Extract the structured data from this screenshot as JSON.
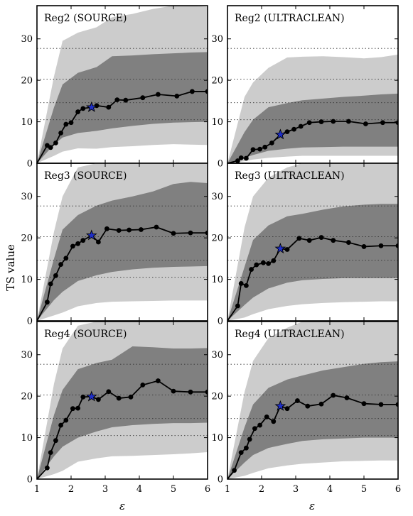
{
  "figure": {
    "ylabel": "TS value",
    "xlabel": "ε",
    "colors": {
      "outer_band": "#cccccc",
      "inner_band": "#808080",
      "line": "#000000",
      "marker_fill": "#000000",
      "star_fill": "#1f2fc8",
      "star_stroke": "#000000"
    }
  },
  "chart_data": [
    {
      "type": "line",
      "title": "Reg2 (SOURCE)",
      "xlim": [
        1,
        6
      ],
      "ylim": [
        0,
        38
      ],
      "xticks": [
        1,
        2,
        3,
        4,
        5,
        6
      ],
      "yticks": [
        0,
        10,
        20,
        30
      ],
      "reference_lines": [
        10.5,
        14.6,
        20.3,
        27.7
      ],
      "x": [
        1.0,
        1.3,
        1.4,
        1.55,
        1.7,
        1.85,
        2.0,
        2.2,
        2.35,
        2.6,
        2.75,
        3.1,
        3.35,
        3.6,
        4.1,
        4.55,
        5.1,
        5.55,
        6.0
      ],
      "y": [
        0.0,
        4.3,
        3.8,
        4.9,
        7.3,
        9.4,
        9.8,
        12.4,
        13.2,
        13.5,
        13.9,
        13.5,
        15.3,
        15.2,
        15.8,
        16.6,
        16.2,
        17.3,
        17.3
      ],
      "band_x": [
        1.0,
        1.5,
        1.75,
        2.2,
        2.75,
        3.2,
        3.8,
        4.4,
        5.0,
        5.5,
        6.0
      ],
      "outer_lower": [
        0,
        1.8,
        2.8,
        3.6,
        3.5,
        3.9,
        4.1,
        4.4,
        4.6,
        4.5,
        4.4
      ],
      "inner_lower": [
        0,
        4.5,
        6.2,
        7.3,
        7.8,
        8.4,
        9.0,
        9.5,
        9.8,
        9.9,
        10.0
      ],
      "inner_upper": [
        0,
        13.5,
        19.0,
        21.8,
        23.2,
        25.8,
        26.0,
        26.3,
        26.5,
        26.7,
        26.8
      ],
      "outer_upper": [
        0,
        21.0,
        29.5,
        31.5,
        32.8,
        35.2,
        36.0,
        37.2,
        38.0,
        38.0,
        37.7
      ],
      "highlight": {
        "x": 2.6,
        "y": 13.5
      }
    },
    {
      "type": "line",
      "title": "Reg2 (ULTRACLEAN)",
      "xlim": [
        1,
        6
      ],
      "ylim": [
        0,
        38
      ],
      "xticks": [
        1,
        2,
        3,
        4,
        5,
        6
      ],
      "yticks": [
        0,
        10,
        20,
        30
      ],
      "reference_lines": [
        10.5,
        14.6,
        20.3,
        27.7
      ],
      "x": [
        1.0,
        1.3,
        1.4,
        1.55,
        1.75,
        1.95,
        2.1,
        2.3,
        2.55,
        2.75,
        2.95,
        3.15,
        3.4,
        3.75,
        4.1,
        4.55,
        5.05,
        5.55,
        6.0
      ],
      "y": [
        0.0,
        0.6,
        1.3,
        1.2,
        3.3,
        3.4,
        3.9,
        4.9,
        6.9,
        7.6,
        8.2,
        8.9,
        9.8,
        10.0,
        10.1,
        10.1,
        9.5,
        9.8,
        9.8
      ],
      "band_x": [
        1.0,
        1.5,
        1.75,
        2.2,
        2.75,
        3.2,
        3.8,
        4.4,
        5.0,
        5.5,
        6.0
      ],
      "outer_lower": [
        0,
        0.5,
        0.9,
        1.3,
        1.6,
        1.8,
        1.8,
        1.8,
        1.8,
        1.8,
        1.8
      ],
      "inner_lower": [
        0,
        1.3,
        2.0,
        3.0,
        3.5,
        3.8,
        3.9,
        4.0,
        4.0,
        4.0,
        4.0
      ],
      "inner_upper": [
        0,
        7.5,
        10.5,
        13.5,
        14.5,
        15.2,
        15.6,
        16.0,
        16.3,
        16.6,
        16.8
      ],
      "outer_upper": [
        0,
        16.0,
        19.5,
        23.0,
        25.5,
        25.7,
        25.8,
        25.6,
        25.3,
        25.6,
        26.2
      ],
      "highlight": {
        "x": 2.55,
        "y": 6.9
      }
    },
    {
      "type": "line",
      "title": "Reg3 (SOURCE)",
      "xlim": [
        1,
        6
      ],
      "ylim": [
        0,
        38
      ],
      "xticks": [
        1,
        2,
        3,
        4,
        5,
        6
      ],
      "yticks": [
        0,
        10,
        20,
        30
      ],
      "reference_lines": [
        10.5,
        14.6,
        20.3,
        27.7
      ],
      "x": [
        1.0,
        1.3,
        1.4,
        1.55,
        1.7,
        1.85,
        2.05,
        2.2,
        2.35,
        2.6,
        2.8,
        3.05,
        3.4,
        3.7,
        4.05,
        4.5,
        5.0,
        5.5,
        6.0
      ],
      "y": [
        0.0,
        4.5,
        8.9,
        10.9,
        13.6,
        15.1,
        18.0,
        18.6,
        19.4,
        20.6,
        19.0,
        22.2,
        21.8,
        21.9,
        22.0,
        22.6,
        21.1,
        21.2,
        21.2
      ],
      "band_x": [
        1.0,
        1.5,
        1.75,
        2.2,
        2.75,
        3.2,
        3.8,
        4.4,
        5.0,
        5.5,
        6.0
      ],
      "outer_lower": [
        0,
        1.3,
        2.0,
        3.5,
        4.3,
        4.6,
        4.7,
        4.8,
        4.9,
        4.9,
        4.9
      ],
      "inner_lower": [
        0,
        5.0,
        7.0,
        9.6,
        11.0,
        11.8,
        12.4,
        12.8,
        13.0,
        13.1,
        13.2
      ],
      "inner_upper": [
        0,
        15.0,
        22.0,
        25.5,
        27.8,
        29.0,
        30.0,
        31.2,
        33.0,
        33.5,
        33.2
      ],
      "outer_upper": [
        0,
        21.5,
        30.0,
        37.0,
        38.0,
        38.0,
        38.0,
        38.0,
        38.0,
        38.0,
        38.0
      ],
      "highlight": {
        "x": 2.6,
        "y": 20.6
      }
    },
    {
      "type": "line",
      "title": "Reg3 (ULTRACLEAN)",
      "xlim": [
        1,
        6
      ],
      "ylim": [
        0,
        38
      ],
      "xticks": [
        1,
        2,
        3,
        4,
        5,
        6
      ],
      "yticks": [
        0,
        10,
        20,
        30
      ],
      "reference_lines": [
        10.5,
        14.6,
        20.3,
        27.7
      ],
      "x": [
        1.0,
        1.3,
        1.4,
        1.55,
        1.7,
        1.85,
        2.05,
        2.2,
        2.35,
        2.55,
        2.75,
        3.1,
        3.4,
        3.75,
        4.1,
        4.55,
        5.0,
        5.5,
        6.0
      ],
      "y": [
        0.0,
        3.6,
        9.0,
        8.5,
        12.4,
        13.5,
        14.0,
        13.8,
        14.5,
        17.4,
        17.2,
        19.9,
        19.4,
        20.1,
        19.4,
        18.9,
        17.9,
        18.1,
        18.1
      ],
      "band_x": [
        1.0,
        1.5,
        1.75,
        2.2,
        2.75,
        3.2,
        3.8,
        4.4,
        5.0,
        5.5,
        6.0
      ],
      "outer_lower": [
        0,
        0.8,
        1.6,
        2.8,
        3.6,
        4.0,
        4.3,
        4.5,
        4.6,
        4.7,
        4.7
      ],
      "inner_lower": [
        0,
        3.8,
        5.6,
        7.8,
        9.2,
        9.8,
        10.1,
        10.3,
        10.3,
        10.3,
        10.3
      ],
      "inner_upper": [
        0,
        13.0,
        19.5,
        23.0,
        25.2,
        25.8,
        26.8,
        27.6,
        28.0,
        28.2,
        28.2
      ],
      "outer_upper": [
        0,
        22.5,
        30.0,
        34.5,
        37.0,
        38.0,
        38.0,
        38.0,
        38.0,
        38.0,
        38.0
      ],
      "highlight": {
        "x": 2.55,
        "y": 17.4
      }
    },
    {
      "type": "line",
      "title": "Reg4 (SOURCE)",
      "xlim": [
        1,
        6
      ],
      "ylim": [
        0,
        38
      ],
      "xticks": [
        1,
        2,
        3,
        4,
        5,
        6
      ],
      "yticks": [
        0,
        10,
        20,
        30
      ],
      "reference_lines": [
        10.5,
        14.6,
        20.3,
        27.7
      ],
      "x": [
        1.0,
        1.3,
        1.4,
        1.55,
        1.7,
        1.85,
        2.05,
        2.2,
        2.35,
        2.6,
        2.8,
        3.1,
        3.4,
        3.75,
        4.1,
        4.55,
        5.0,
        5.5,
        6.0
      ],
      "y": [
        0.0,
        2.7,
        6.4,
        9.3,
        13.0,
        14.2,
        17.0,
        17.1,
        19.8,
        19.9,
        19.2,
        21.1,
        19.5,
        19.8,
        22.7,
        23.7,
        21.2,
        21.0,
        21.0
      ],
      "band_x": [
        1.0,
        1.5,
        1.75,
        2.2,
        2.75,
        3.2,
        3.8,
        4.4,
        5.0,
        5.5,
        6.0
      ],
      "outer_lower": [
        0,
        1.2,
        2.0,
        4.2,
        5.0,
        5.5,
        5.6,
        5.8,
        6.0,
        6.2,
        6.5
      ],
      "inner_lower": [
        0,
        5.5,
        7.8,
        10.0,
        11.5,
        12.5,
        13.0,
        13.3,
        13.5,
        13.5,
        13.6
      ],
      "inner_upper": [
        0,
        15.5,
        21.5,
        26.5,
        28.0,
        28.8,
        32.0,
        31.8,
        31.5,
        31.5,
        31.6
      ],
      "outer_upper": [
        0,
        23.0,
        31.5,
        37.0,
        38.0,
        38.0,
        38.0,
        38.0,
        38.0,
        38.0,
        38.0
      ],
      "highlight": {
        "x": 2.6,
        "y": 19.9
      }
    },
    {
      "type": "line",
      "title": "Reg4 (ULTRACLEAN)",
      "xlim": [
        1,
        6
      ],
      "ylim": [
        0,
        38
      ],
      "xticks": [
        1,
        2,
        3,
        4,
        5,
        6
      ],
      "yticks": [
        0,
        10,
        20,
        30
      ],
      "reference_lines": [
        10.5,
        14.6,
        20.3,
        27.7
      ],
      "x": [
        1.0,
        1.2,
        1.4,
        1.55,
        1.65,
        1.8,
        1.95,
        2.15,
        2.35,
        2.55,
        2.75,
        3.05,
        3.35,
        3.75,
        4.1,
        4.5,
        5.0,
        5.5,
        6.0
      ],
      "y": [
        0.0,
        2.1,
        6.4,
        7.5,
        9.6,
        12.2,
        13.0,
        15.0,
        13.9,
        17.6,
        17.0,
        18.9,
        17.6,
        18.1,
        20.2,
        19.6,
        18.2,
        18.0,
        18.0
      ],
      "band_x": [
        1.0,
        1.5,
        1.75,
        2.2,
        2.75,
        3.2,
        3.8,
        4.4,
        5.0,
        5.5,
        6.0
      ],
      "outer_lower": [
        0,
        0.8,
        1.5,
        2.6,
        3.3,
        3.7,
        4.0,
        4.3,
        4.4,
        4.5,
        4.5
      ],
      "inner_lower": [
        0,
        4.0,
        5.8,
        7.5,
        8.5,
        9.2,
        9.6,
        9.8,
        10.0,
        10.0,
        10.0
      ],
      "inner_upper": [
        0,
        12.5,
        18.0,
        22.0,
        24.0,
        25.0,
        26.2,
        27.0,
        27.8,
        28.2,
        28.4
      ],
      "outer_upper": [
        0,
        21.0,
        28.5,
        34.0,
        36.5,
        38.0,
        38.0,
        38.0,
        38.0,
        38.0,
        38.0
      ],
      "highlight": {
        "x": 2.55,
        "y": 17.6
      }
    }
  ]
}
